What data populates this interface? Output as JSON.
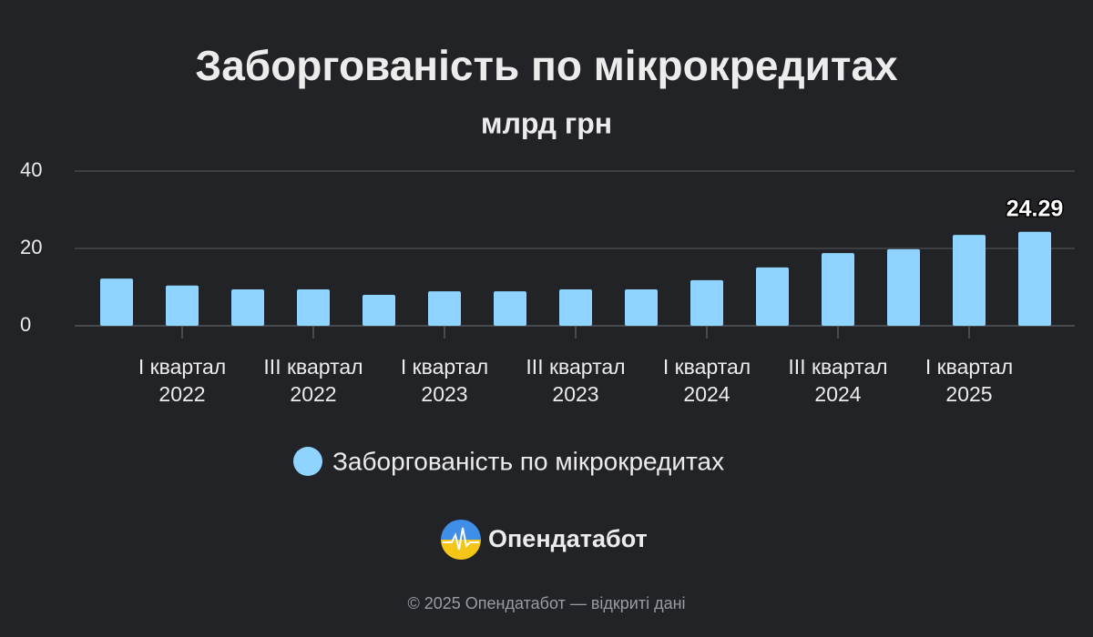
{
  "chart_data": {
    "type": "bar",
    "title": "Заборгованість по мікрокредитах",
    "subtitle": "млрд грн",
    "categories": [
      null,
      "I квартал 2022",
      null,
      "III квартал 2022",
      null,
      "I квартал 2023",
      null,
      "III квартал 2023",
      null,
      "I квартал 2024",
      null,
      "III квартал 2024",
      null,
      "I квартал 2025",
      null
    ],
    "series": [
      {
        "name": "Заборгованість по мікрокредитах",
        "color": "#8fd4ff",
        "values": [
          12.2,
          10.4,
          9.4,
          9.4,
          8.0,
          8.9,
          8.9,
          9.4,
          9.4,
          11.8,
          15.1,
          18.8,
          19.8,
          23.5,
          24.29
        ],
        "value_labels": [
          null,
          null,
          null,
          null,
          null,
          null,
          null,
          null,
          null,
          null,
          null,
          null,
          null,
          null,
          "24.29"
        ]
      }
    ],
    "ylim": [
      0,
      40
    ],
    "yticks": [
      0,
      20,
      40
    ],
    "grid": true,
    "legend": "bottom",
    "brand": "Опендатабот",
    "footer": "© 2025 Опендатабот — відкриті дані"
  }
}
